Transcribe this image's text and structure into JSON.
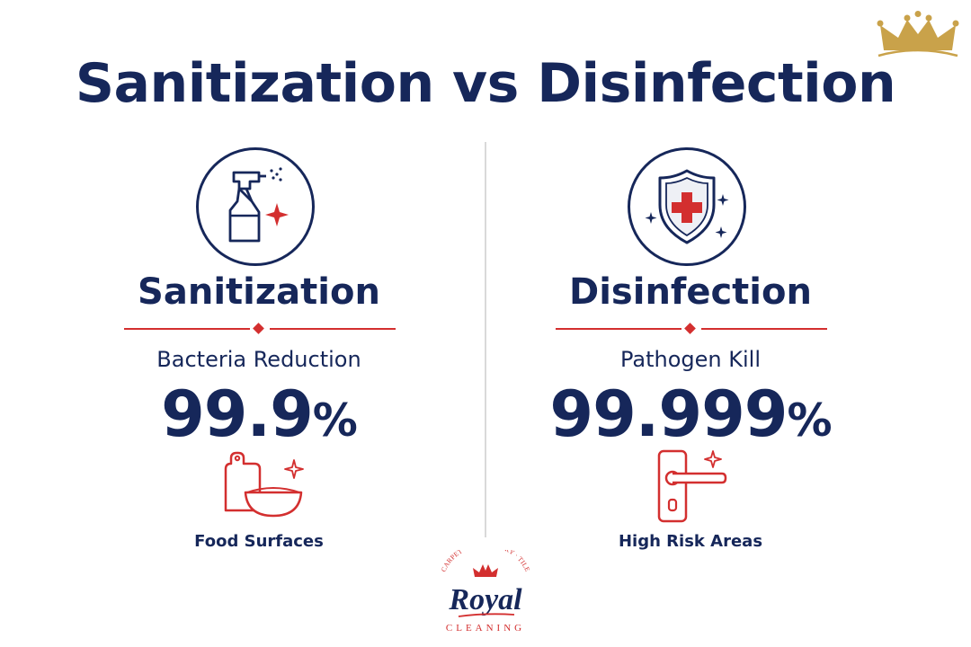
{
  "title": "Sanitization vs Disinfection",
  "columns": [
    {
      "heading": "Sanitization",
      "icon": "spray-bottle-icon",
      "metric_label": "Bacteria Reduction",
      "metric_number": "99.9",
      "metric_unit": "%",
      "bottom_icon": "cutting-board-bowl-icon",
      "caption": "Food Surfaces"
    },
    {
      "heading": "Disinfection",
      "icon": "shield-cross-icon",
      "metric_label": "Pathogen Kill",
      "metric_number": "99.999",
      "metric_unit": "%",
      "bottom_icon": "door-handle-icon",
      "caption": "High Risk Areas"
    }
  ],
  "logo": {
    "arc_text": "CARPET · UPHOLSTERY · TILE",
    "brand": "Royal",
    "sub": "CLEANING"
  },
  "colors": {
    "navy": "#16275a",
    "red": "#d32f2f",
    "gold": "#c9a24a"
  }
}
